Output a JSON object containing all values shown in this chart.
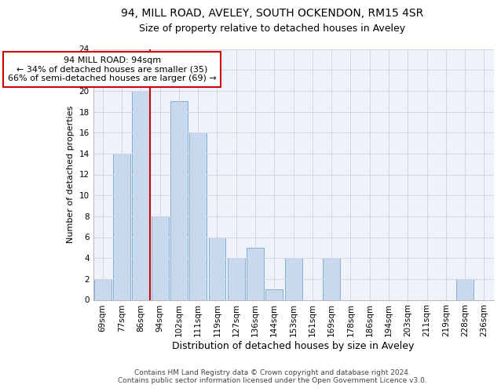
{
  "title1": "94, MILL ROAD, AVELEY, SOUTH OCKENDON, RM15 4SR",
  "title2": "Size of property relative to detached houses in Aveley",
  "xlabel": "Distribution of detached houses by size in Aveley",
  "ylabel": "Number of detached properties",
  "categories": [
    "69sqm",
    "77sqm",
    "86sqm",
    "94sqm",
    "102sqm",
    "111sqm",
    "119sqm",
    "127sqm",
    "136sqm",
    "144sqm",
    "153sqm",
    "161sqm",
    "169sqm",
    "178sqm",
    "186sqm",
    "194sqm",
    "203sqm",
    "211sqm",
    "219sqm",
    "228sqm",
    "236sqm"
  ],
  "values": [
    2,
    14,
    20,
    8,
    19,
    16,
    6,
    4,
    5,
    1,
    4,
    0,
    4,
    0,
    0,
    0,
    0,
    0,
    0,
    2,
    0
  ],
  "bar_color": "#c8d9ee",
  "bar_edge_color": "#7ba3cc",
  "vline_x_index": 3,
  "vline_color": "#cc0000",
  "annotation_line1": "94 MILL ROAD: 94sqm",
  "annotation_line2": "← 34% of detached houses are smaller (35)",
  "annotation_line3": "66% of semi-detached houses are larger (69) →",
  "annotation_box_color": "#cc0000",
  "ylim": [
    0,
    24
  ],
  "yticks": [
    0,
    2,
    4,
    6,
    8,
    10,
    12,
    14,
    16,
    18,
    20,
    22,
    24
  ],
  "grid_color": "#d0d8e8",
  "background_color": "#eef2f9",
  "footer_text": "Contains HM Land Registry data © Crown copyright and database right 2024.\nContains public sector information licensed under the Open Government Licence v3.0.",
  "title1_fontsize": 10,
  "title2_fontsize": 9,
  "xlabel_fontsize": 9,
  "ylabel_fontsize": 8,
  "tick_fontsize": 7.5,
  "annotation_fontsize": 8,
  "footer_fontsize": 6.5
}
